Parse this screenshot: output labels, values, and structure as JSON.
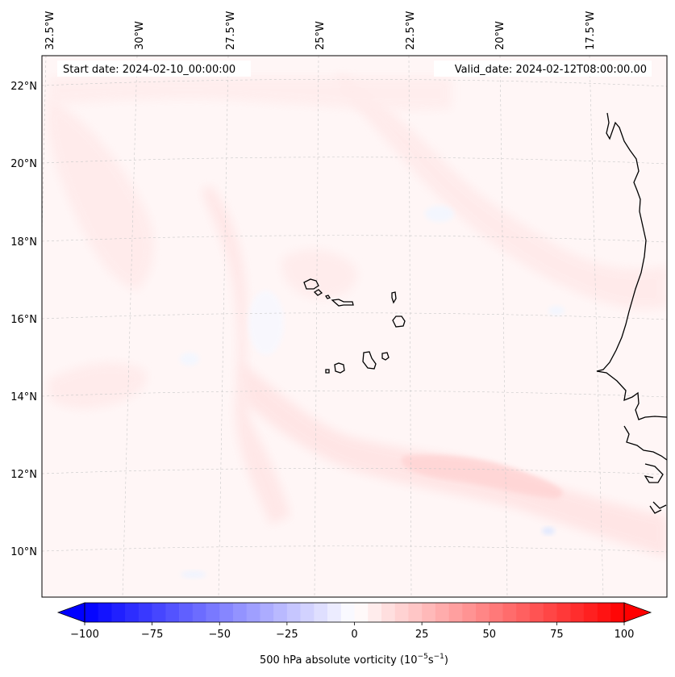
{
  "map": {
    "start_date_label": "Start date: 2024-02-10_00:00:00",
    "valid_date_label": "Valid_date: 2024-02-12T08:00:00.00",
    "longitude_labels": [
      "32.5°W",
      "30°W",
      "27.5°W",
      "25°W",
      "22.5°W",
      "20°W",
      "17.5°W"
    ],
    "latitude_labels": [
      "22°N",
      "20°N",
      "18°N",
      "16°N",
      "14°N",
      "12°N",
      "10°N"
    ]
  },
  "colorbar": {
    "label_prefix": "500 hPa absolute vorticity (10",
    "label_exp1": "−5",
    "label_mid": "s",
    "label_exp2": "−1",
    "label_suffix": ")",
    "tick_labels": [
      "−100",
      "−75",
      "−50",
      "−25",
      "0",
      "25",
      "50",
      "75",
      "100"
    ],
    "min": -100,
    "max": 100,
    "low_color": "#0000ff",
    "zero_color": "#ffffff",
    "high_color": "#ff0000"
  }
}
